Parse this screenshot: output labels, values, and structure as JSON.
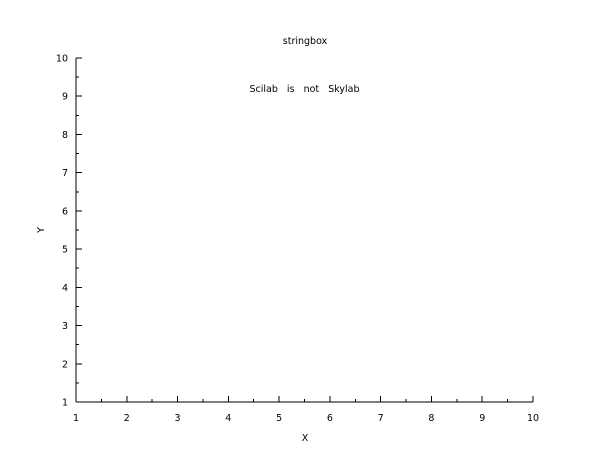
{
  "chart_data": {
    "type": "scatter",
    "title": "stringbox",
    "xlabel": "X",
    "ylabel": "Y",
    "xlim": [
      1,
      10
    ],
    "ylim": [
      1,
      10
    ],
    "xticks": [
      "1",
      "2",
      "3",
      "4",
      "5",
      "6",
      "7",
      "8",
      "9",
      "10"
    ],
    "yticks": [
      "1",
      "2",
      "3",
      "4",
      "5",
      "6",
      "7",
      "8",
      "9",
      "10"
    ],
    "minor_ticks_per_major": 1,
    "grid": false,
    "annotations": [
      {
        "text": "Scilab   is   not   Skylab",
        "x": 5.5,
        "y": 9.2
      }
    ]
  }
}
